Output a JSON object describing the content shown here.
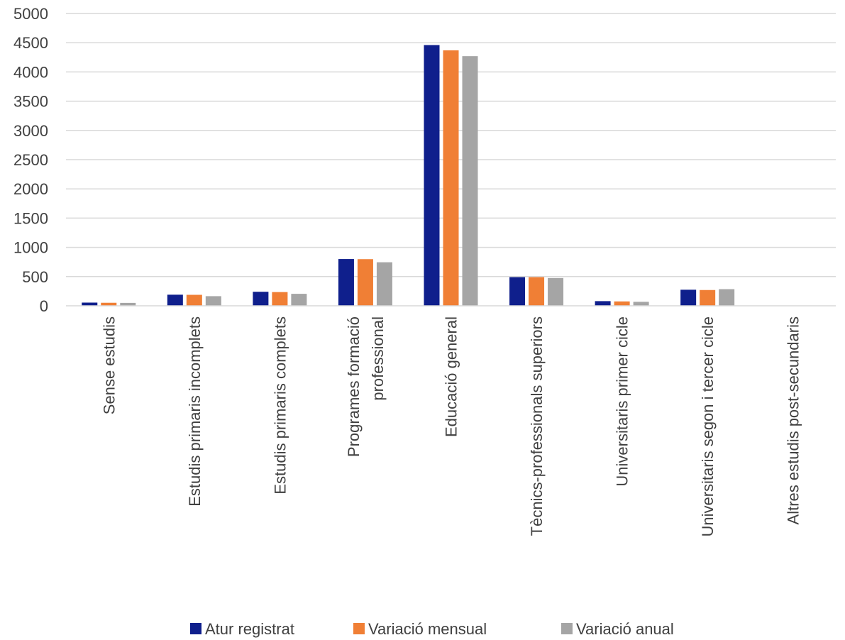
{
  "chart_data": {
    "type": "bar",
    "title": "",
    "xlabel": "",
    "ylabel": "",
    "ylim": [
      0,
      5000
    ],
    "yticks": [
      0,
      500,
      1000,
      1500,
      2000,
      2500,
      3000,
      3500,
      4000,
      4500,
      5000
    ],
    "grid": true,
    "legend_position": "bottom",
    "categories": [
      [
        "Sense estudis"
      ],
      [
        "Estudis primaris incomplets"
      ],
      [
        "Estudis primaris complets"
      ],
      [
        "Programes formació",
        "professional"
      ],
      [
        "Educació general"
      ],
      [
        "Tècnics-professionals superiors"
      ],
      [
        "Universitaris primer cicle"
      ],
      [
        "Universitaris segon i tercer cicle"
      ],
      [
        "Altres estudis post-secundaris"
      ]
    ],
    "series": [
      {
        "name": "Atur registrat",
        "color": "#0f1f8c",
        "values": [
          55,
          190,
          240,
          800,
          4460,
          490,
          80,
          275,
          0
        ]
      },
      {
        "name": "Variació mensual",
        "color": "#f07f35",
        "values": [
          52,
          188,
          235,
          798,
          4370,
          490,
          75,
          270,
          0
        ]
      },
      {
        "name": "Variació anual",
        "color": "#a5a5a5",
        "values": [
          50,
          165,
          205,
          745,
          4270,
          475,
          68,
          285,
          0
        ]
      }
    ]
  }
}
